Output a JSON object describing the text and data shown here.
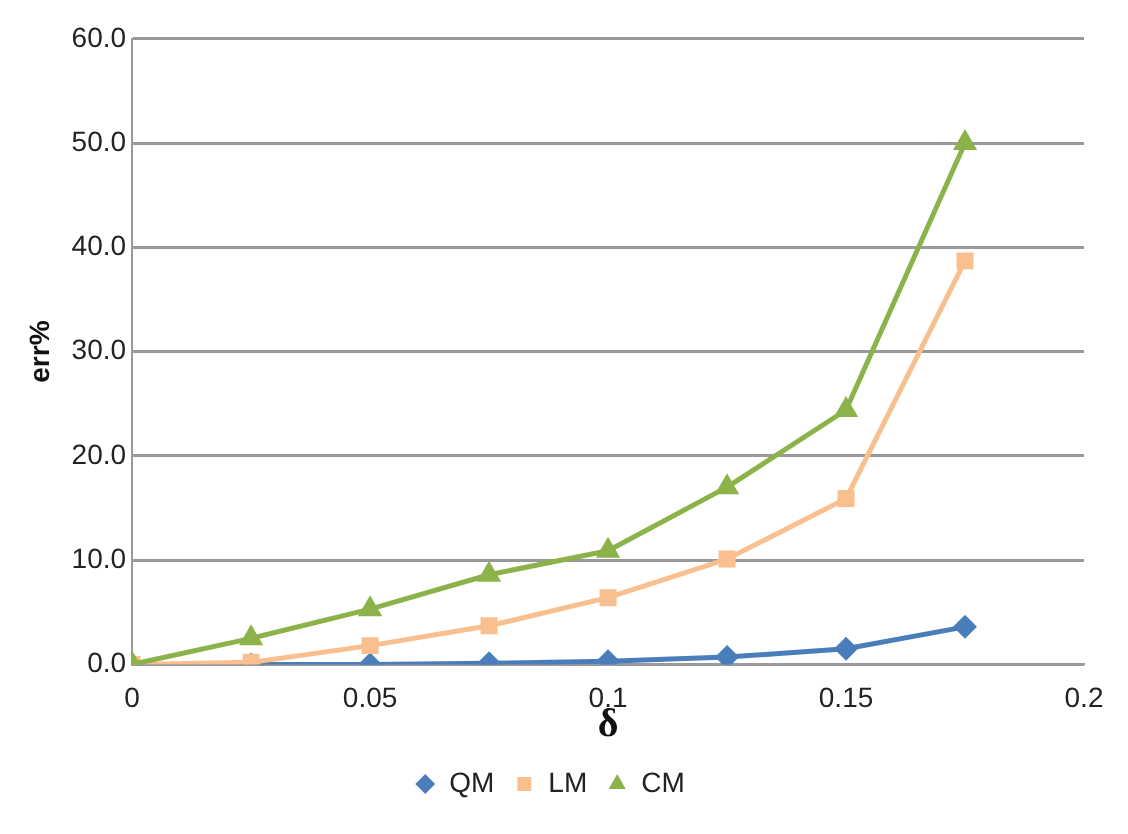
{
  "chart_data": {
    "type": "line",
    "xlabel": "δ",
    "ylabel": "err%",
    "x": [
      0,
      0.025,
      0.05,
      0.075,
      0.1,
      0.125,
      0.15,
      0.175
    ],
    "series": [
      {
        "name": "QM",
        "color": "#4a7ebb",
        "marker": "diamond",
        "values": [
          0,
          0,
          0,
          0.1,
          0.3,
          0.7,
          1.5,
          3.6
        ]
      },
      {
        "name": "LM",
        "color": "#f9bf8f",
        "marker": "square",
        "values": [
          0,
          0.2,
          1.8,
          3.7,
          6.4,
          10.1,
          15.9,
          38.7
        ]
      },
      {
        "name": "CM",
        "color": "#8cb24a",
        "marker": "triangle",
        "values": [
          0,
          2.5,
          5.3,
          8.6,
          10.9,
          17.0,
          24.4,
          50.0
        ]
      }
    ],
    "xlim": [
      0,
      0.2
    ],
    "xticks": [
      0,
      0.05,
      0.1,
      0.15,
      0.2
    ],
    "ylim": [
      0,
      60
    ],
    "yticks": [
      {
        "value": 0,
        "label": "0.0"
      },
      {
        "value": 10,
        "label": "10.0"
      },
      {
        "value": 20,
        "label": "20.0"
      },
      {
        "value": 30,
        "label": "30.0"
      },
      {
        "value": 40,
        "label": "40.0"
      },
      {
        "value": 50,
        "label": "50.0"
      },
      {
        "value": 60,
        "label": "60.0"
      }
    ],
    "grid": "y",
    "legend": "bottom"
  }
}
